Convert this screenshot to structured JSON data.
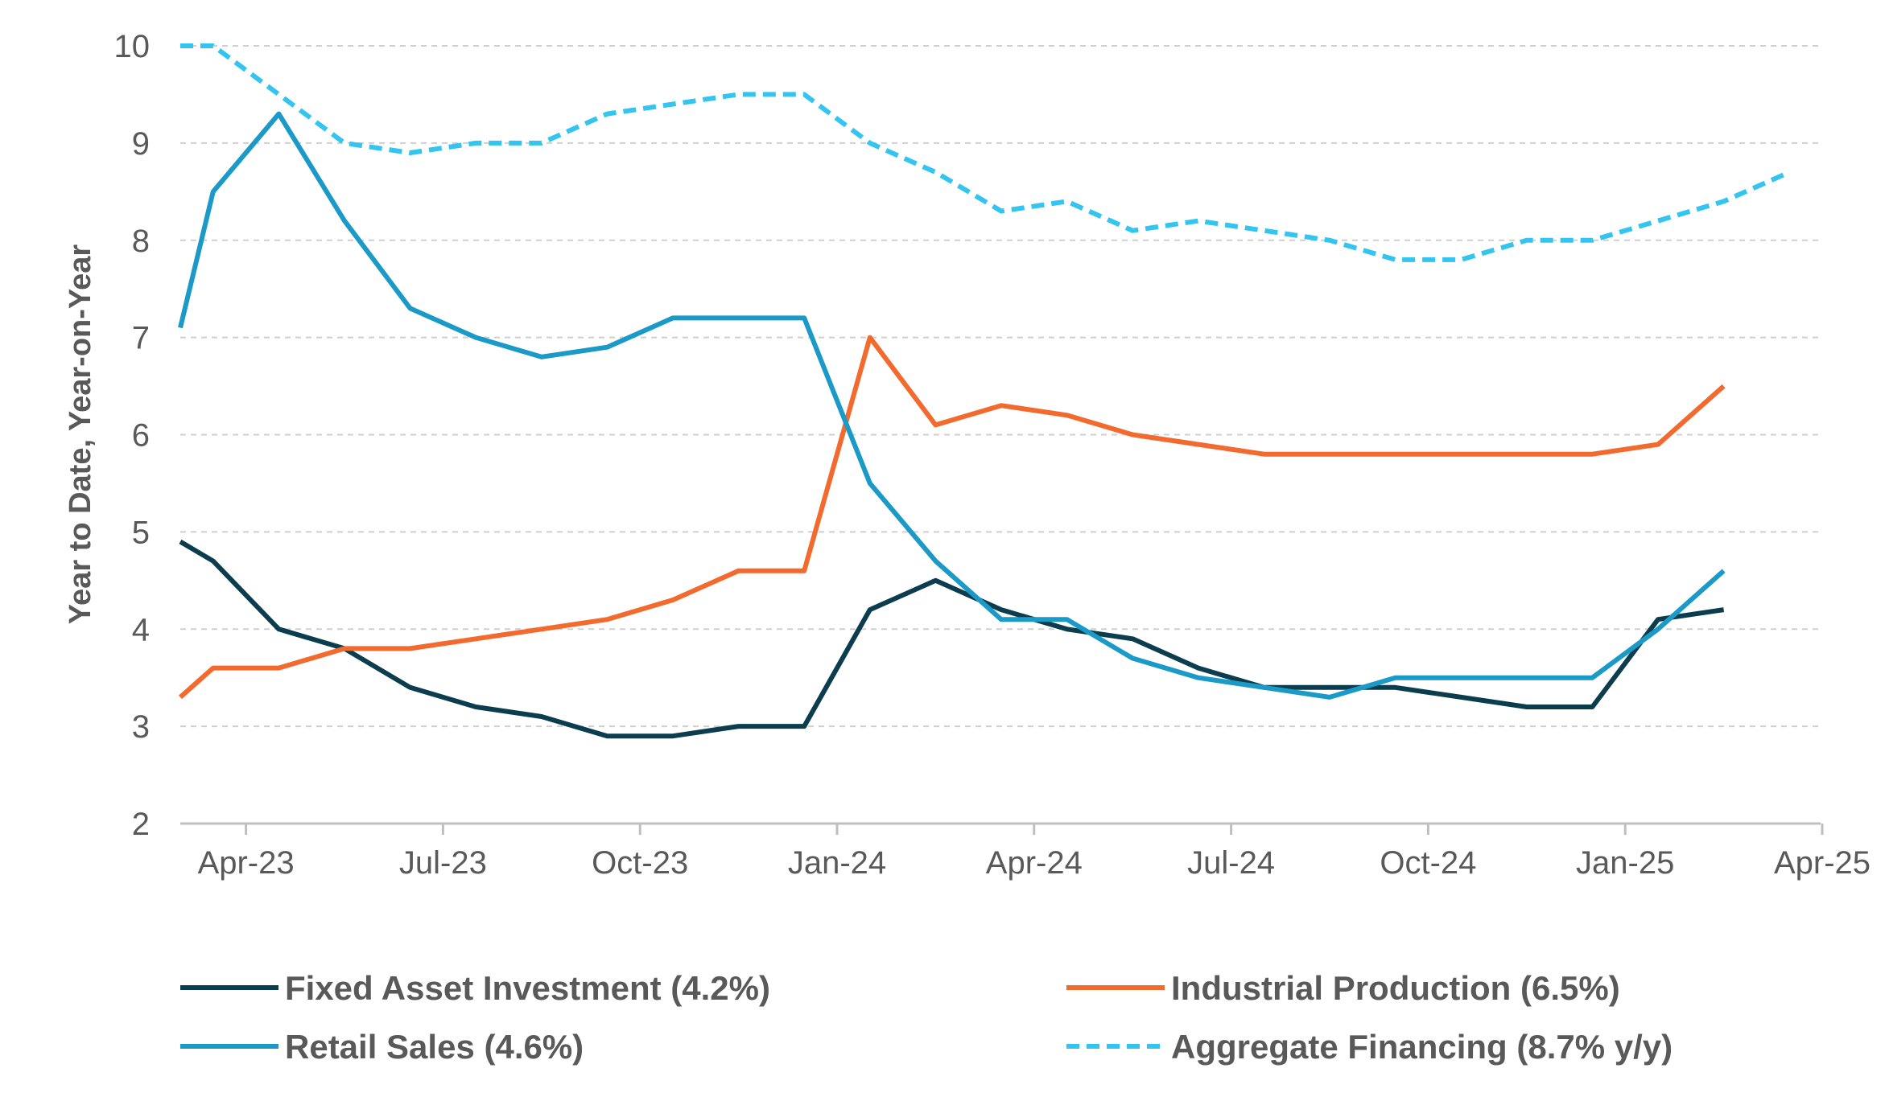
{
  "chart_data": {
    "type": "line",
    "title": "",
    "xlabel": "",
    "ylabel": "Year to Date, Year-on-Year",
    "ylim": [
      2,
      10
    ],
    "yticks": [
      2,
      3,
      4,
      5,
      6,
      7,
      8,
      9,
      10
    ],
    "x_tick_labels": [
      "Apr-23",
      "Jul-23",
      "Oct-23",
      "Jan-24",
      "Apr-24",
      "Jul-24",
      "Oct-24",
      "Jan-25",
      "Apr-25"
    ],
    "grid": "horizontal dashed",
    "legend_position": "bottom",
    "x": [
      "Mar-23",
      "Apr-23",
      "May-23",
      "Jun-23",
      "Jul-23",
      "Aug-23",
      "Sep-23",
      "Oct-23",
      "Nov-23",
      "Dec-23",
      "Jan-24",
      "Feb-24",
      "Mar-24",
      "Apr-24",
      "May-24",
      "Jun-24",
      "Jul-24",
      "Aug-24",
      "Sep-24",
      "Oct-24",
      "Nov-24",
      "Dec-24",
      "Jan-25",
      "Feb-25",
      "Mar-25",
      "Apr-25"
    ],
    "series": [
      {
        "name": "Fixed Asset Investment (4.2%)",
        "color": "#0b3d4f",
        "dash": "solid",
        "points": [
          [
            0,
            4.9
          ],
          [
            0.5,
            4.7
          ],
          [
            1.5,
            4.0
          ],
          [
            2.5,
            3.8
          ],
          [
            3.5,
            3.4
          ],
          [
            4.5,
            3.2
          ],
          [
            5.5,
            3.1
          ],
          [
            6.5,
            2.9
          ],
          [
            7.5,
            2.9
          ],
          [
            8.5,
            3.0
          ],
          [
            9.5,
            3.0
          ],
          [
            10.5,
            4.2
          ],
          [
            11.5,
            4.5
          ],
          [
            12.5,
            4.2
          ],
          [
            13.5,
            4.0
          ],
          [
            14.5,
            3.9
          ],
          [
            15.5,
            3.6
          ],
          [
            16.5,
            3.4
          ],
          [
            17.5,
            3.4
          ],
          [
            18.5,
            3.4
          ],
          [
            19.5,
            3.3
          ],
          [
            20.5,
            3.2
          ],
          [
            21.5,
            3.2
          ],
          [
            22.5,
            4.1
          ],
          [
            23.5,
            4.2
          ]
        ]
      },
      {
        "name": "Industrial Production (6.5%)",
        "color": "#f26a2e",
        "dash": "solid",
        "points": [
          [
            0,
            3.3
          ],
          [
            0.5,
            3.6
          ],
          [
            1.5,
            3.6
          ],
          [
            2.5,
            3.8
          ],
          [
            3.5,
            3.8
          ],
          [
            4.5,
            3.9
          ],
          [
            5.5,
            4.0
          ],
          [
            6.5,
            4.1
          ],
          [
            7.5,
            4.3
          ],
          [
            8.5,
            4.6
          ],
          [
            9.5,
            4.6
          ],
          [
            10.5,
            7.0
          ],
          [
            11.5,
            6.1
          ],
          [
            12.5,
            6.3
          ],
          [
            13.5,
            6.2
          ],
          [
            14.5,
            6.0
          ],
          [
            15.5,
            5.9
          ],
          [
            16.5,
            5.8
          ],
          [
            17.5,
            5.8
          ],
          [
            18.5,
            5.8
          ],
          [
            19.5,
            5.8
          ],
          [
            20.5,
            5.8
          ],
          [
            21.5,
            5.8
          ],
          [
            22.5,
            5.9
          ],
          [
            23.5,
            6.5
          ]
        ]
      },
      {
        "name": "Retail Sales (4.6%)",
        "color": "#1b99c7",
        "dash": "solid",
        "points": [
          [
            0,
            7.1
          ],
          [
            0.5,
            8.5
          ],
          [
            1.5,
            9.3
          ],
          [
            2.5,
            8.2
          ],
          [
            3.5,
            7.3
          ],
          [
            4.5,
            7.0
          ],
          [
            5.5,
            6.8
          ],
          [
            6.5,
            6.9
          ],
          [
            7.5,
            7.2
          ],
          [
            8.5,
            7.2
          ],
          [
            9.5,
            7.2
          ],
          [
            10.5,
            5.5
          ],
          [
            11.5,
            4.7
          ],
          [
            12.5,
            4.1
          ],
          [
            13.5,
            4.1
          ],
          [
            14.5,
            3.7
          ],
          [
            15.5,
            3.5
          ],
          [
            16.5,
            3.4
          ],
          [
            17.5,
            3.3
          ],
          [
            18.5,
            3.5
          ],
          [
            19.5,
            3.5
          ],
          [
            20.5,
            3.5
          ],
          [
            21.5,
            3.5
          ],
          [
            22.5,
            4.0
          ],
          [
            23.5,
            4.6
          ]
        ]
      },
      {
        "name": "Aggregate Financing (8.7% y/y)",
        "color": "#33c4f0",
        "dash": "dashed",
        "points": [
          [
            0,
            10.0
          ],
          [
            0.5,
            10.0
          ],
          [
            1.5,
            9.5
          ],
          [
            2.5,
            9.0
          ],
          [
            3.5,
            8.9
          ],
          [
            4.5,
            9.0
          ],
          [
            5.5,
            9.0
          ],
          [
            6.5,
            9.3
          ],
          [
            7.5,
            9.4
          ],
          [
            8.5,
            9.5
          ],
          [
            9.5,
            9.5
          ],
          [
            10.5,
            9.0
          ],
          [
            11.5,
            8.7
          ],
          [
            12.5,
            8.3
          ],
          [
            13.5,
            8.4
          ],
          [
            14.5,
            8.1
          ],
          [
            15.5,
            8.2
          ],
          [
            16.5,
            8.1
          ],
          [
            17.5,
            8.0
          ],
          [
            18.5,
            7.8
          ],
          [
            19.5,
            7.8
          ],
          [
            20.5,
            8.0
          ],
          [
            21.5,
            8.0
          ],
          [
            22.5,
            8.2
          ],
          [
            23.5,
            8.4
          ],
          [
            24.5,
            8.7
          ]
        ]
      }
    ]
  }
}
